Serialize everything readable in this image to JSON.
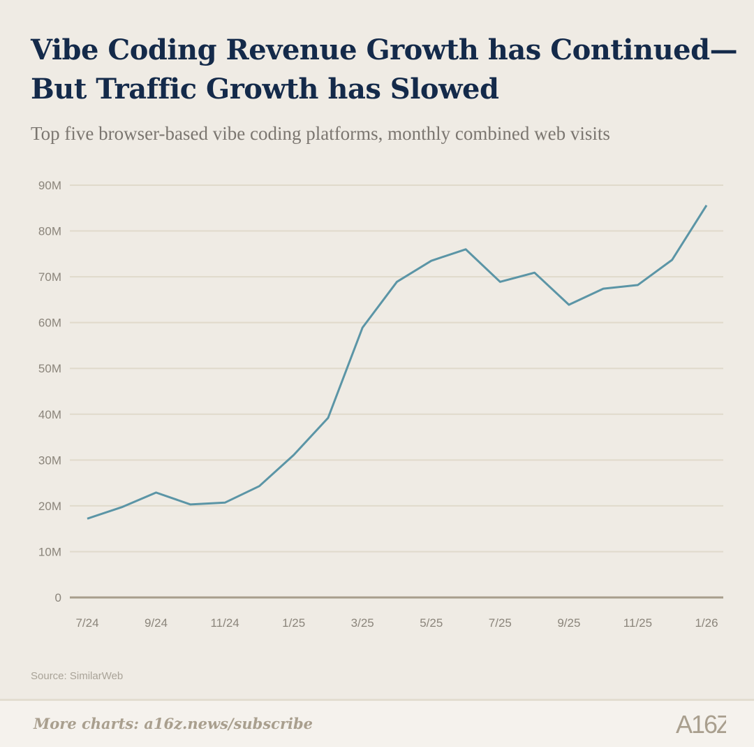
{
  "title_line1": "Vibe Coding Revenue Growth has Continued—",
  "title_line2": "But Traffic Growth has Slowed",
  "subtitle": "Top five browser-based vibe coding platforms, monthly combined web visits",
  "source": "Source: SimilarWeb",
  "footer": {
    "more_charts": "More charts: a16z.news/subscribe",
    "logo": "A16Z"
  },
  "colors": {
    "line": "#5b95a6",
    "grid": "#e0dacb",
    "axis": "#a79e8c",
    "title": "#142a4a",
    "background": "#efebe4"
  },
  "chart_data": {
    "type": "line",
    "grid": true,
    "ylim": [
      0,
      90000000
    ],
    "yticks": [
      0,
      10000000,
      20000000,
      30000000,
      40000000,
      50000000,
      60000000,
      70000000,
      80000000,
      90000000
    ],
    "ytick_labels": [
      "0",
      "10M",
      "20M",
      "30M",
      "40M",
      "50M",
      "60M",
      "70M",
      "80M",
      "90M"
    ],
    "x": [
      "7/24",
      "8/24",
      "9/24",
      "10/24",
      "11/24",
      "12/24",
      "1/25",
      "2/25",
      "3/25",
      "4/25",
      "5/25",
      "6/25",
      "7/25",
      "8/25",
      "9/25",
      "10/25",
      "11/25",
      "12/25",
      "1/26"
    ],
    "xtick_labels": [
      "7/24",
      "9/24",
      "11/24",
      "1/25",
      "3/25",
      "5/25",
      "7/25",
      "9/25",
      "11/25",
      "1/26"
    ],
    "values": [
      17200000,
      19700000,
      22900000,
      20300000,
      20700000,
      24300000,
      31100000,
      39200000,
      58900000,
      68900000,
      73500000,
      76000000,
      68900000,
      70900000,
      63900000,
      67400000,
      68200000,
      73700000,
      85600000
    ]
  }
}
